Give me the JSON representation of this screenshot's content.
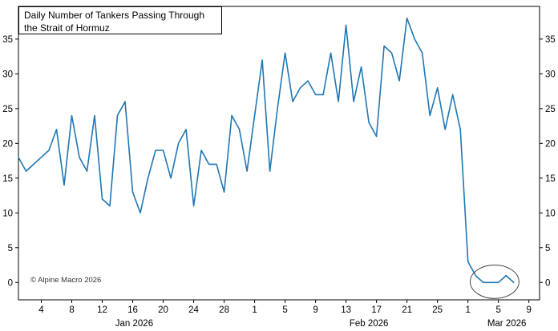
{
  "chart_data": {
    "type": "line",
    "title": "Daily Number of Tankers Passing Through the Strait of Hormuz",
    "title_lines": [
      "Daily Number of Tankers Passing Through",
      "the Strait of Hormuz"
    ],
    "watermark": "© Alpine Macro 2026",
    "series": [
      {
        "name": "daily-tanker-count",
        "start_date": "2026-01-01",
        "frequency": "daily",
        "values": [
          18,
          16,
          17,
          18,
          19,
          22,
          14,
          24,
          18,
          16,
          24,
          12,
          11,
          24,
          26,
          13,
          10,
          15,
          19,
          19,
          15,
          20,
          22,
          11,
          19,
          17,
          17,
          13,
          24,
          22,
          16,
          24,
          32,
          16,
          25,
          33,
          26,
          28,
          29,
          27,
          27,
          33,
          26,
          37,
          26,
          31,
          23,
          21,
          34,
          33,
          29,
          38,
          35,
          33,
          24,
          28,
          22,
          27,
          22,
          3,
          1,
          0,
          0,
          0,
          1,
          0
        ]
      }
    ],
    "x_ticks": [
      {
        "day": 4,
        "label": "4"
      },
      {
        "day": 8,
        "label": "8"
      },
      {
        "day": 12,
        "label": "12"
      },
      {
        "day": 16,
        "label": "16"
      },
      {
        "day": 20,
        "label": "20"
      },
      {
        "day": 24,
        "label": "24"
      },
      {
        "day": 28,
        "label": "28"
      },
      {
        "day": 32,
        "label": "1"
      },
      {
        "day": 36,
        "label": "5"
      },
      {
        "day": 40,
        "label": "9"
      },
      {
        "day": 44,
        "label": "13"
      },
      {
        "day": 48,
        "label": "17"
      },
      {
        "day": 52,
        "label": "21"
      },
      {
        "day": 56,
        "label": "25"
      },
      {
        "day": 60,
        "label": "1"
      },
      {
        "day": 64,
        "label": "5"
      },
      {
        "day": 68,
        "label": "9"
      }
    ],
    "month_labels": [
      {
        "day": 16.2,
        "label": "Jan 2026"
      },
      {
        "day": 47.0,
        "label": "Feb 2026"
      },
      {
        "day": 65.1,
        "label": "Mar 2026"
      }
    ],
    "y_ticks": [
      0,
      5,
      10,
      15,
      20,
      25,
      30,
      35
    ],
    "y_axis_sides": [
      "left",
      "right"
    ],
    "xlim_days": [
      1,
      69.4
    ],
    "ylim": [
      -2.5,
      39.7
    ],
    "grid": false,
    "legend": "none",
    "line_color": "#1f77b4",
    "axis_color": "#000000",
    "tick_label_color": "#000000",
    "annotation": {
      "type": "ellipse",
      "meaning": "circle around final near-zero values (Mar 1-7)",
      "center_day": 63.5,
      "center_value": 0.1,
      "radius_days": 3.2,
      "radius_values": 2.4,
      "color": "#444444"
    }
  }
}
